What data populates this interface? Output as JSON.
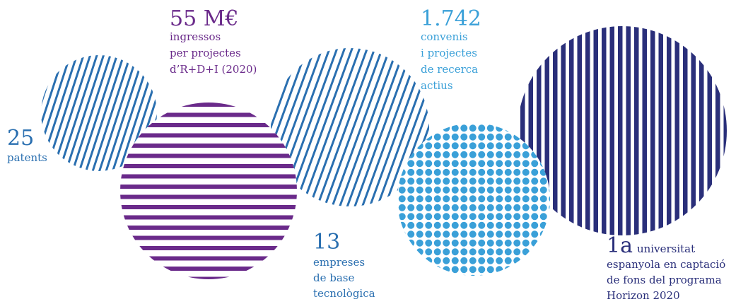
{
  "items": [
    {
      "value": "25",
      "lines": [
        "patents"
      ]
    },
    {
      "value": "55 M€",
      "lines": [
        "ingressos",
        "per projectes",
        "d’R+D+I (2020)"
      ]
    },
    {
      "value": "1.742",
      "lines": [
        "convenis",
        "i projectes",
        "de recerca",
        "actius"
      ]
    },
    {
      "value": "13",
      "lines": [
        "empreses",
        "de base",
        "tecnològica"
      ]
    },
    {
      "value": "1a",
      "lines": [
        "universitat",
        "espanyola en captació",
        "de fons del programa",
        "Horizon 2020"
      ]
    }
  ]
}
